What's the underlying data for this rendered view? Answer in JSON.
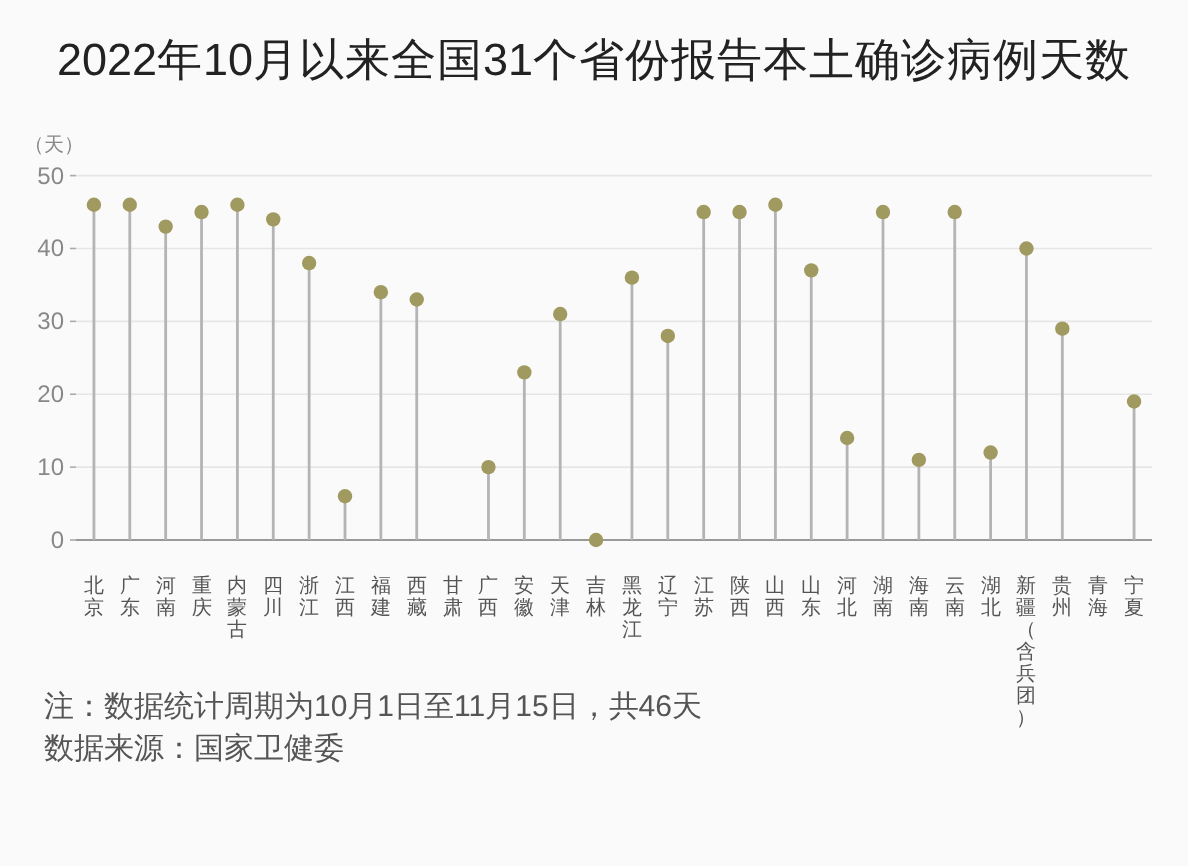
{
  "chart_data": {
    "type": "lollipop",
    "title": "2022年10月以来全国31个省份报告本土确诊病例天数",
    "ylabel": "（天）",
    "categories": [
      "北京",
      "广东",
      "河南",
      "重庆",
      "内蒙古",
      "四川",
      "浙江",
      "江西",
      "福建",
      "西藏",
      "甘肃",
      "广西",
      "安徽",
      "天津",
      "吉林",
      "黑龙江",
      "辽宁",
      "江苏",
      "陕西",
      "山西",
      "山东",
      "河北",
      "湖南",
      "海南",
      "云南",
      "湖北",
      "新疆（含兵团）",
      "贵州",
      "青海",
      "宁夏"
    ],
    "values": [
      46,
      46,
      43,
      45,
      46,
      44,
      38,
      6,
      34,
      33,
      null,
      10,
      23,
      31,
      0,
      36,
      28,
      45,
      45,
      46,
      37,
      14,
      45,
      11,
      45,
      12,
      40,
      29,
      null,
      19
    ],
    "color": "#a09a60",
    "ylim": [
      0,
      50
    ],
    "yticks": [
      0,
      10,
      20,
      30,
      40,
      50
    ],
    "grid": "y",
    "marker": "circle",
    "annotations": [
      "注：数据统计周期为10月1日至11月15日，共46天",
      "数据来源：国家卫健委"
    ]
  }
}
